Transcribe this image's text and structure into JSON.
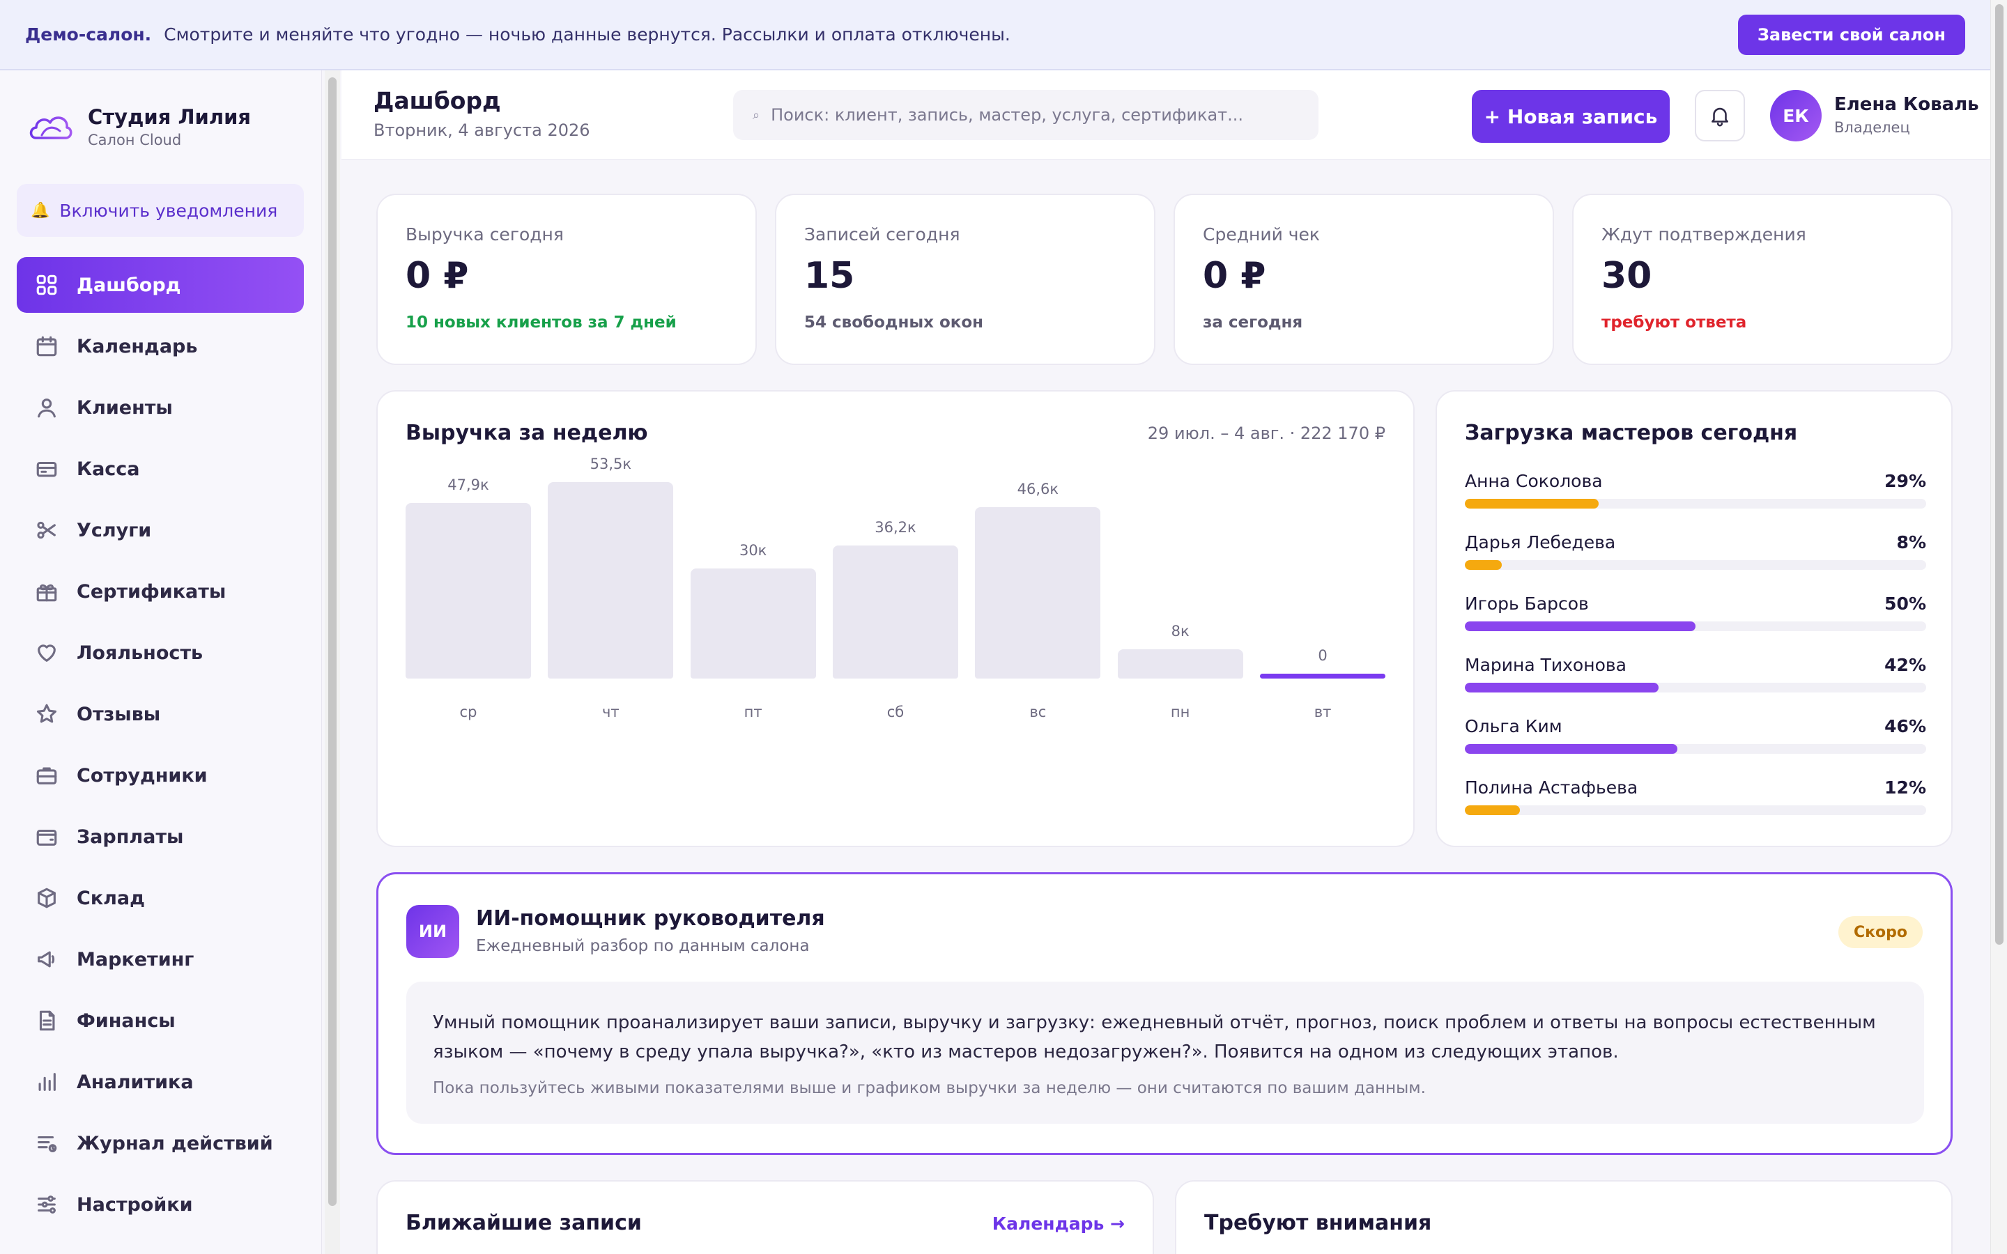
{
  "banner": {
    "bold": "Демо-салон.",
    "text": "Смотрите и меняйте что угодно — ночью данные вернутся. Рассылки и оплата отключены.",
    "cta": "Завести свой салон"
  },
  "brand": {
    "name": "Студия Лилия",
    "subtitle": "Салон Cloud"
  },
  "notify": {
    "label": "Включить уведомления",
    "icon": "bell-icon"
  },
  "nav": [
    {
      "label": "Дашборд",
      "icon": "grid-icon",
      "active": true
    },
    {
      "label": "Календарь",
      "icon": "calendar-icon"
    },
    {
      "label": "Клиенты",
      "icon": "user-icon"
    },
    {
      "label": "Касса",
      "icon": "card-icon"
    },
    {
      "label": "Услуги",
      "icon": "scissors-icon"
    },
    {
      "label": "Сертификаты",
      "icon": "gift-icon"
    },
    {
      "label": "Лояльность",
      "icon": "heart-icon"
    },
    {
      "label": "Отзывы",
      "icon": "star-icon"
    },
    {
      "label": "Сотрудники",
      "icon": "briefcase-icon"
    },
    {
      "label": "Зарплаты",
      "icon": "wallet-icon"
    },
    {
      "label": "Склад",
      "icon": "box-icon"
    },
    {
      "label": "Маркетинг",
      "icon": "megaphone-icon"
    },
    {
      "label": "Финансы",
      "icon": "document-icon"
    },
    {
      "label": "Аналитика",
      "icon": "bar-chart-icon"
    },
    {
      "label": "Журнал действий",
      "icon": "log-icon"
    },
    {
      "label": "Настройки",
      "icon": "sliders-icon"
    }
  ],
  "header": {
    "title": "Дашборд",
    "date": "Вторник, 4 августа 2026",
    "search_placeholder": "Поиск: клиент, запись, мастер, услуга, сертификат...",
    "new_button": "+ Новая запись",
    "user": {
      "initials": "ЕК",
      "name": "Елена Коваль",
      "role": "Владелец"
    }
  },
  "stats": [
    {
      "label": "Выручка сегодня",
      "value": "0 ₽",
      "sub": "10 новых клиентов за 7 дней",
      "tone": "green"
    },
    {
      "label": "Записей сегодня",
      "value": "15",
      "sub": "54 свободных окон",
      "tone": "neutral"
    },
    {
      "label": "Средний чек",
      "value": "0 ₽",
      "sub": "за сегодня",
      "tone": "neutral"
    },
    {
      "label": "Ждут подтверждения",
      "value": "30",
      "sub": "требуют ответа",
      "tone": "red"
    }
  ],
  "revenue": {
    "title": "Выручка за неделю",
    "range": "29 июл. – 4 авг. · 222 170 ₽"
  },
  "chart_data": {
    "type": "bar",
    "title": "Выручка за неделю",
    "categories": [
      "ср",
      "чт",
      "пт",
      "сб",
      "вс",
      "пн",
      "вт"
    ],
    "values": [
      47900,
      53500,
      30000,
      36200,
      46600,
      8000,
      0
    ],
    "value_labels": [
      "47,9к",
      "53,5к",
      "30к",
      "36,2к",
      "46,6к",
      "8к",
      "0"
    ],
    "highlight_index": 6,
    "colors": {
      "bar": "#e9e7f1",
      "today": "#7a3af0"
    }
  },
  "load": {
    "title": "Загрузка мастеров сегодня",
    "masters": [
      {
        "name": "Анна Соколова",
        "pct_label": "29%",
        "pct": 29,
        "color": "#f5a90f"
      },
      {
        "name": "Дарья Лебедева",
        "pct_label": "8%",
        "pct": 8,
        "color": "#f5a90f"
      },
      {
        "name": "Игорь Барсов",
        "pct_label": "50%",
        "pct": 50,
        "color": "#8a45ee"
      },
      {
        "name": "Марина Тихонова",
        "pct_label": "42%",
        "pct": 42,
        "color": "#8a45ee"
      },
      {
        "name": "Ольга Ким",
        "pct_label": "46%",
        "pct": 46,
        "color": "#8a45ee"
      },
      {
        "name": "Полина Астафьева",
        "pct_label": "12%",
        "pct": 12,
        "color": "#f5a90f"
      }
    ]
  },
  "ai": {
    "badge": "ИИ",
    "title": "ИИ-помощник руководителя",
    "subtitle": "Ежедневный разбор по данным салона",
    "soon": "Скоро",
    "text": "Умный помощник проанализирует ваши записи, выручку и загрузку: ежедневный отчёт, прогноз, поиск проблем и ответы на вопросы естественным языком — «почему в среду упала выручка?», «кто из мастеров недозагружен?». Появится на одном из следующих этапов.",
    "note": "Пока пользуйтесь живыми показателями выше и графиком выручки за неделю — они считаются по вашим данным."
  },
  "upcoming": {
    "title": "Ближайшие записи",
    "link": "Календарь →"
  },
  "attention": {
    "title": "Требуют внимания"
  },
  "colors": {
    "accent": "#6d35e8",
    "green": "#17a04a",
    "red": "#e0242c"
  }
}
